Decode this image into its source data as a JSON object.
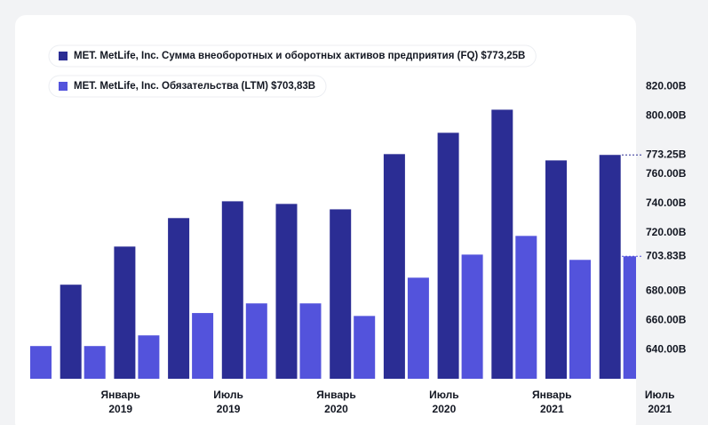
{
  "chart_data": {
    "type": "bar",
    "categories": [
      null,
      "Январь 2019",
      null,
      "Июль 2019",
      null,
      "Январь 2020",
      null,
      "Июль 2020",
      null,
      "Январь 2021",
      null,
      "Июль 2021"
    ],
    "series": [
      {
        "name": "MET. MetLife, Inc. Сумма внеоборотных и оборотных активов предприятия (FQ) $773,25B",
        "color": "#2b2d94",
        "values": [
          null,
          684.4,
          710.5,
          730,
          741.5,
          739.7,
          736,
          773.8,
          788.4,
          804.2,
          769.5,
          773.25
        ]
      },
      {
        "name": "MET. MetLife, Inc. Обязательства (LTM) $703,83B",
        "color": "#5353dc",
        "values": [
          642.4,
          642.4,
          649.7,
          665,
          671.6,
          671.6,
          663,
          689.2,
          705,
          717.8,
          701.4,
          703.83
        ]
      }
    ],
    "annotations": [
      {
        "value": 773.25,
        "label": "773.25B",
        "color": "#2b2d94"
      },
      {
        "value": 703.83,
        "label": "703.83B",
        "color": "#5353dc"
      }
    ],
    "ylim": [
      620,
      830
    ],
    "yticks": [
      {
        "value": 640,
        "label": "640.00B"
      },
      {
        "value": 660,
        "label": "660.00B"
      },
      {
        "value": 680,
        "label": "680.00B"
      },
      {
        "value": 720,
        "label": "720.00B"
      },
      {
        "value": 740,
        "label": "740.00B"
      },
      {
        "value": 760,
        "label": "760.00B"
      },
      {
        "value": 800,
        "label": "800.00B"
      },
      {
        "value": 820,
        "label": "820.00B"
      }
    ]
  }
}
